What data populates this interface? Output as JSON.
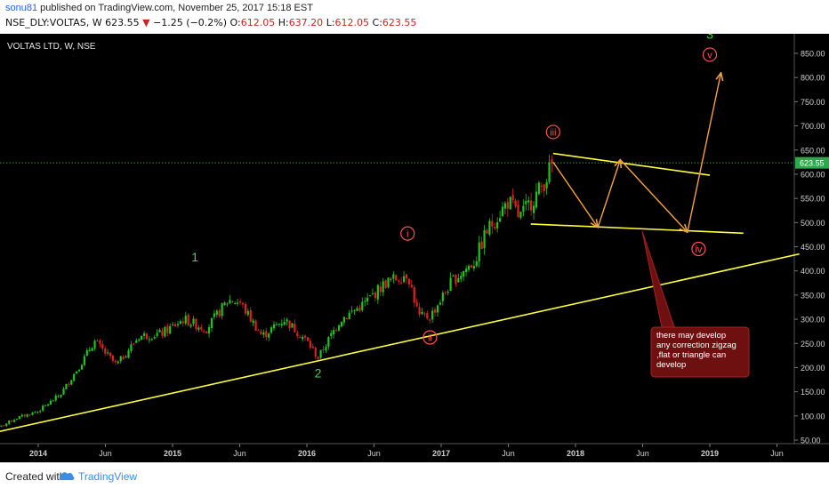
{
  "header": {
    "author": "sonu81",
    "published": " published on TradingView.com, November 25, 2017 15:18 EST",
    "symbol": "NSE_DLY:VOLTAS, W",
    "last": "623.55",
    "change_arrow": "▼",
    "change": "−1.25 (−0.2%)",
    "o_label": "O:",
    "o_value": "612.05",
    "h_label": "H:",
    "h_value": "637.20",
    "l_label": "L:",
    "l_value": "612.05",
    "c_label": "C:",
    "c_value": "623.55"
  },
  "footer": {
    "created": "Created with",
    "brand": "TradingView",
    "logo_icon": "tradingview-cloud-icon"
  },
  "colors": {
    "background": "#000000",
    "up": "#1fc51f",
    "down": "#e02020",
    "trendline": "#ffff3a",
    "arrow": "#f5a23a",
    "wave_green": "#46d246",
    "wave_red": "#ff5252",
    "price_line": "#3ddc3d"
  },
  "chart_data": {
    "type": "candlestick",
    "title": "VOLTAS LTD, W, NSE",
    "interval": "W",
    "ylim": [
      40,
      900
    ],
    "y_ticks": [
      50,
      100,
      150,
      200,
      250,
      300,
      350,
      400,
      450,
      500,
      550,
      600,
      650,
      700,
      750,
      800,
      850
    ],
    "y_tick_labels": [
      "50.00",
      "100.00",
      "150.00",
      "200.00",
      "250.00",
      "300.00",
      "350.00",
      "400.00",
      "450.00",
      "500.00",
      "550.00",
      "600.00",
      "650.00",
      "700.00",
      "750.00",
      "800.00",
      "850.00"
    ],
    "x_ticks": [
      "2014",
      "Jun",
      "2015",
      "Jun",
      "2016",
      "Jun",
      "2017",
      "Jun",
      "2018",
      "Jun",
      "2019",
      "Jun"
    ],
    "x_range": [
      "2013-09",
      "2019-09"
    ],
    "grid": false,
    "last_price": 623.55,
    "last_price_label": "623.55",
    "price_path": [
      {
        "date": "2013-09",
        "close": 70
      },
      {
        "date": "2013-11",
        "close": 95
      },
      {
        "date": "2014-01",
        "close": 110
      },
      {
        "date": "2014-03",
        "close": 145
      },
      {
        "date": "2014-05",
        "close": 215
      },
      {
        "date": "2014-06",
        "close": 255
      },
      {
        "date": "2014-08",
        "close": 205
      },
      {
        "date": "2014-10",
        "close": 265
      },
      {
        "date": "2014-12",
        "close": 270
      },
      {
        "date": "2015-02",
        "close": 300
      },
      {
        "date": "2015-04",
        "close": 280
      },
      {
        "date": "2015-06",
        "close": 340
      },
      {
        "date": "2015-07",
        "close": 335
      },
      {
        "date": "2015-09",
        "close": 265
      },
      {
        "date": "2015-11",
        "close": 300
      },
      {
        "date": "2016-01",
        "close": 255
      },
      {
        "date": "2016-02",
        "close": 220
      },
      {
        "date": "2016-04",
        "close": 300
      },
      {
        "date": "2016-06",
        "close": 330
      },
      {
        "date": "2016-08",
        "close": 375
      },
      {
        "date": "2016-10",
        "close": 395
      },
      {
        "date": "2016-11",
        "close": 305
      },
      {
        "date": "2016-12",
        "close": 305
      },
      {
        "date": "2017-02",
        "close": 380
      },
      {
        "date": "2017-04",
        "close": 420
      },
      {
        "date": "2017-05",
        "close": 480
      },
      {
        "date": "2017-07",
        "close": 545
      },
      {
        "date": "2017-08",
        "close": 510
      },
      {
        "date": "2017-10",
        "close": 575
      },
      {
        "date": "2017-11",
        "close": 623.55
      }
    ],
    "wave_labels": [
      {
        "text": "1",
        "style": "green",
        "date": "2015-03",
        "price": 420
      },
      {
        "text": "2",
        "style": "green",
        "date": "2016-02",
        "price": 180
      },
      {
        "text": "3",
        "style": "green",
        "date": "2019-01",
        "price": 880
      },
      {
        "text": "i",
        "style": "red-circle",
        "date": "2016-10",
        "price": 470
      },
      {
        "text": "ii",
        "style": "red-circle",
        "date": "2016-12",
        "price": 255
      },
      {
        "text": "iii",
        "style": "red-circle",
        "date": "2017-11",
        "price": 680
      },
      {
        "text": "iv",
        "style": "red-circle",
        "date": "2018-12",
        "price": 438
      },
      {
        "text": "v",
        "style": "red-circle",
        "date": "2019-01",
        "price": 840
      }
    ],
    "trendlines": [
      {
        "from": {
          "date": "2013-09",
          "price": 65
        },
        "to": {
          "date": "2019-09",
          "price": 435
        }
      },
      {
        "from": {
          "date": "2017-11",
          "price": 643
        },
        "to": {
          "date": "2019-01",
          "price": 598
        }
      },
      {
        "from": {
          "date": "2017-09",
          "price": 497
        },
        "to": {
          "date": "2019-04",
          "price": 478
        }
      }
    ],
    "projection_arrows": [
      {
        "from": {
          "date": "2017-11",
          "price": 625
        },
        "to": {
          "date": "2018-03",
          "price": 490
        }
      },
      {
        "from": {
          "date": "2018-03",
          "price": 490
        },
        "to": {
          "date": "2018-05",
          "price": 630
        }
      },
      {
        "from": {
          "date": "2018-05",
          "price": 630
        },
        "to": {
          "date": "2018-11",
          "price": 480
        }
      },
      {
        "from": {
          "date": "2018-11",
          "price": 480
        },
        "to": {
          "date": "2019-02",
          "price": 810
        }
      }
    ],
    "annotation": {
      "lines": [
        "there may develop",
        "any correction zigzag",
        ",flat or triangle can",
        "develop"
      ]
    }
  }
}
